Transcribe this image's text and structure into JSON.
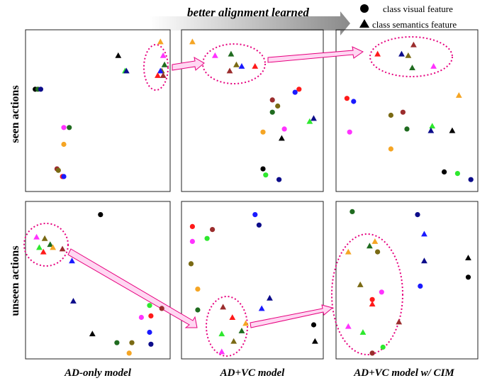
{
  "header": {
    "arrow_label": "better alignment learned",
    "legend": {
      "visual": "class visual feature",
      "semantics": "class semantics feature"
    }
  },
  "row_labels": [
    "seen actions",
    "unseen actions"
  ],
  "column_labels": [
    "AD-only model",
    "AD+VC model",
    "AD+VC model w/ CIM"
  ],
  "colors": {
    "black": "#000000",
    "navy": "#0c0c8a",
    "blue": "#1a1aff",
    "green": "#2ee82e",
    "darkgreen": "#1f6b1f",
    "red": "#ff1a1a",
    "brown": "#9b2d2d",
    "olive": "#7a6a14",
    "orange": "#f5a524",
    "magenta": "#ff33ff",
    "highlight": "#e6007e",
    "arrow_fill": "#ffd7f2"
  },
  "chart_data": [
    {
      "type": "scatter",
      "title": "AD-only model",
      "row": "seen actions",
      "xlim": [
        0,
        100
      ],
      "ylim": [
        0,
        100
      ],
      "points": [
        {
          "x": 4,
          "y": 64,
          "shape": "circle",
          "color": "black"
        },
        {
          "x": 6,
          "y": 64,
          "shape": "circle",
          "color": "darkgreen"
        },
        {
          "x": 8,
          "y": 64,
          "shape": "circle",
          "color": "navy"
        },
        {
          "x": 25,
          "y": 39,
          "shape": "circle",
          "color": "magenta"
        },
        {
          "x": 29,
          "y": 39,
          "shape": "circle",
          "color": "darkgreen"
        },
        {
          "x": 25,
          "y": 28,
          "shape": "circle",
          "color": "orange"
        },
        {
          "x": 20,
          "y": 12,
          "shape": "circle",
          "color": "brown"
        },
        {
          "x": 21,
          "y": 11,
          "shape": "circle",
          "color": "olive"
        },
        {
          "x": 24,
          "y": 7,
          "shape": "circle",
          "color": "red"
        },
        {
          "x": 25,
          "y": 7,
          "shape": "circle",
          "color": "blue"
        },
        {
          "x": 65,
          "y": 86,
          "shape": "triangle",
          "color": "black"
        },
        {
          "x": 70,
          "y": 76,
          "shape": "triangle",
          "color": "green"
        },
        {
          "x": 71,
          "y": 76,
          "shape": "triangle",
          "color": "navy"
        },
        {
          "x": 96,
          "y": 95,
          "shape": "triangle",
          "color": "orange"
        },
        {
          "x": 98,
          "y": 86,
          "shape": "triangle",
          "color": "magenta"
        },
        {
          "x": 99,
          "y": 80,
          "shape": "triangle",
          "color": "darkgreen"
        },
        {
          "x": 97,
          "y": 76,
          "shape": "triangle",
          "color": "olive"
        },
        {
          "x": 96,
          "y": 76,
          "shape": "triangle",
          "color": "blue"
        },
        {
          "x": 94,
          "y": 73,
          "shape": "triangle",
          "color": "red"
        },
        {
          "x": 98,
          "y": 73,
          "shape": "triangle",
          "color": "brown"
        }
      ]
    },
    {
      "type": "scatter",
      "title": "AD+VC model",
      "row": "seen actions",
      "xlim": [
        0,
        100
      ],
      "ylim": [
        0,
        100
      ],
      "points": [
        {
          "x": 5,
          "y": 95,
          "shape": "triangle",
          "color": "orange"
        },
        {
          "x": 22,
          "y": 86,
          "shape": "triangle",
          "color": "magenta"
        },
        {
          "x": 34,
          "y": 87,
          "shape": "triangle",
          "color": "darkgreen"
        },
        {
          "x": 38,
          "y": 80,
          "shape": "triangle",
          "color": "olive"
        },
        {
          "x": 42,
          "y": 79,
          "shape": "triangle",
          "color": "blue"
        },
        {
          "x": 33,
          "y": 76,
          "shape": "triangle",
          "color": "brown"
        },
        {
          "x": 52,
          "y": 79,
          "shape": "triangle",
          "color": "red"
        },
        {
          "x": 85,
          "y": 64,
          "shape": "circle",
          "color": "red"
        },
        {
          "x": 82,
          "y": 62,
          "shape": "circle",
          "color": "blue"
        },
        {
          "x": 65,
          "y": 57,
          "shape": "circle",
          "color": "brown"
        },
        {
          "x": 69,
          "y": 53,
          "shape": "circle",
          "color": "olive"
        },
        {
          "x": 65,
          "y": 49,
          "shape": "circle",
          "color": "darkgreen"
        },
        {
          "x": 96,
          "y": 45,
          "shape": "triangle",
          "color": "navy"
        },
        {
          "x": 93,
          "y": 43,
          "shape": "triangle",
          "color": "green"
        },
        {
          "x": 74,
          "y": 38,
          "shape": "circle",
          "color": "magenta"
        },
        {
          "x": 58,
          "y": 36,
          "shape": "circle",
          "color": "orange"
        },
        {
          "x": 72,
          "y": 32,
          "shape": "triangle",
          "color": "black"
        },
        {
          "x": 58,
          "y": 12,
          "shape": "circle",
          "color": "black"
        },
        {
          "x": 60,
          "y": 8,
          "shape": "circle",
          "color": "green"
        },
        {
          "x": 70,
          "y": 5,
          "shape": "circle",
          "color": "navy"
        }
      ]
    },
    {
      "type": "scatter",
      "title": "AD+VC model w/ CIM",
      "row": "seen actions",
      "xlim": [
        0,
        100
      ],
      "ylim": [
        0,
        100
      ],
      "points": [
        {
          "x": 28,
          "y": 87,
          "shape": "triangle",
          "color": "red"
        },
        {
          "x": 46,
          "y": 87,
          "shape": "triangle",
          "color": "navy"
        },
        {
          "x": 51,
          "y": 86,
          "shape": "triangle",
          "color": "olive"
        },
        {
          "x": 55,
          "y": 93,
          "shape": "triangle",
          "color": "brown"
        },
        {
          "x": 54,
          "y": 78,
          "shape": "triangle",
          "color": "darkgreen"
        },
        {
          "x": 70,
          "y": 79,
          "shape": "triangle",
          "color": "magenta"
        },
        {
          "x": 5,
          "y": 58,
          "shape": "circle",
          "color": "red"
        },
        {
          "x": 10,
          "y": 56,
          "shape": "circle",
          "color": "blue"
        },
        {
          "x": 89,
          "y": 60,
          "shape": "triangle",
          "color": "orange"
        },
        {
          "x": 38,
          "y": 47,
          "shape": "circle",
          "color": "olive"
        },
        {
          "x": 47,
          "y": 49,
          "shape": "circle",
          "color": "brown"
        },
        {
          "x": 7,
          "y": 36,
          "shape": "circle",
          "color": "magenta"
        },
        {
          "x": 38,
          "y": 25,
          "shape": "circle",
          "color": "orange"
        },
        {
          "x": 50,
          "y": 38,
          "shape": "circle",
          "color": "darkgreen"
        },
        {
          "x": 69,
          "y": 40,
          "shape": "triangle",
          "color": "green"
        },
        {
          "x": 68,
          "y": 37,
          "shape": "triangle",
          "color": "navy"
        },
        {
          "x": 84,
          "y": 37,
          "shape": "triangle",
          "color": "black"
        },
        {
          "x": 78,
          "y": 10,
          "shape": "circle",
          "color": "black"
        },
        {
          "x": 88,
          "y": 9,
          "shape": "circle",
          "color": "green"
        },
        {
          "x": 98,
          "y": 5,
          "shape": "circle",
          "color": "navy"
        }
      ]
    },
    {
      "type": "scatter",
      "title": "AD-only model",
      "row": "unseen actions",
      "xlim": [
        0,
        100
      ],
      "ylim": [
        0,
        100
      ],
      "points": [
        {
          "x": 52,
          "y": 94,
          "shape": "circle",
          "color": "black"
        },
        {
          "x": 5,
          "y": 79,
          "shape": "triangle",
          "color": "magenta"
        },
        {
          "x": 11,
          "y": 78,
          "shape": "triangle",
          "color": "olive"
        },
        {
          "x": 15,
          "y": 74,
          "shape": "triangle",
          "color": "darkgreen"
        },
        {
          "x": 7,
          "y": 72,
          "shape": "triangle",
          "color": "green"
        },
        {
          "x": 17,
          "y": 72,
          "shape": "triangle",
          "color": "orange"
        },
        {
          "x": 24,
          "y": 71,
          "shape": "triangle",
          "color": "brown"
        },
        {
          "x": 10,
          "y": 69,
          "shape": "triangle",
          "color": "red"
        },
        {
          "x": 31,
          "y": 63,
          "shape": "triangle",
          "color": "blue"
        },
        {
          "x": 32,
          "y": 36,
          "shape": "triangle",
          "color": "navy"
        },
        {
          "x": 88,
          "y": 33,
          "shape": "circle",
          "color": "green"
        },
        {
          "x": 97,
          "y": 31,
          "shape": "circle",
          "color": "brown"
        },
        {
          "x": 89,
          "y": 26,
          "shape": "circle",
          "color": "red"
        },
        {
          "x": 82,
          "y": 25,
          "shape": "circle",
          "color": "magenta"
        },
        {
          "x": 88,
          "y": 15,
          "shape": "circle",
          "color": "blue"
        },
        {
          "x": 46,
          "y": 14,
          "shape": "triangle",
          "color": "black"
        },
        {
          "x": 64,
          "y": 8,
          "shape": "circle",
          "color": "darkgreen"
        },
        {
          "x": 75,
          "y": 8,
          "shape": "circle",
          "color": "olive"
        },
        {
          "x": 89,
          "y": 7,
          "shape": "circle",
          "color": "navy"
        },
        {
          "x": 73,
          "y": 1,
          "shape": "circle",
          "color": "orange"
        }
      ]
    },
    {
      "type": "scatter",
      "title": "AD+VC model",
      "row": "unseen actions",
      "xlim": [
        0,
        100
      ],
      "ylim": [
        0,
        100
      ],
      "points": [
        {
          "x": 52,
          "y": 94,
          "shape": "circle",
          "color": "blue"
        },
        {
          "x": 5,
          "y": 86,
          "shape": "circle",
          "color": "red"
        },
        {
          "x": 20,
          "y": 84,
          "shape": "circle",
          "color": "brown"
        },
        {
          "x": 55,
          "y": 87,
          "shape": "circle",
          "color": "navy"
        },
        {
          "x": 5,
          "y": 76,
          "shape": "circle",
          "color": "magenta"
        },
        {
          "x": 16,
          "y": 78,
          "shape": "circle",
          "color": "green"
        },
        {
          "x": 4,
          "y": 61,
          "shape": "circle",
          "color": "olive"
        },
        {
          "x": 9,
          "y": 44,
          "shape": "circle",
          "color": "orange"
        },
        {
          "x": 9,
          "y": 30,
          "shape": "circle",
          "color": "darkgreen"
        },
        {
          "x": 63,
          "y": 38,
          "shape": "triangle",
          "color": "navy"
        },
        {
          "x": 57,
          "y": 31,
          "shape": "triangle",
          "color": "blue"
        },
        {
          "x": 28,
          "y": 32,
          "shape": "triangle",
          "color": "brown"
        },
        {
          "x": 35,
          "y": 25,
          "shape": "triangle",
          "color": "red"
        },
        {
          "x": 45,
          "y": 21,
          "shape": "triangle",
          "color": "orange"
        },
        {
          "x": 42,
          "y": 16,
          "shape": "triangle",
          "color": "darkgreen"
        },
        {
          "x": 27,
          "y": 14,
          "shape": "triangle",
          "color": "green"
        },
        {
          "x": 36,
          "y": 9,
          "shape": "triangle",
          "color": "olive"
        },
        {
          "x": 27,
          "y": 2,
          "shape": "triangle",
          "color": "magenta"
        },
        {
          "x": 96,
          "y": 20,
          "shape": "circle",
          "color": "black"
        },
        {
          "x": 97,
          "y": 9,
          "shape": "triangle",
          "color": "black"
        }
      ]
    },
    {
      "type": "scatter",
      "title": "AD+VC model w/ CIM",
      "row": "unseen actions",
      "xlim": [
        0,
        100
      ],
      "ylim": [
        0,
        100
      ],
      "points": [
        {
          "x": 9,
          "y": 96,
          "shape": "circle",
          "color": "darkgreen"
        },
        {
          "x": 58,
          "y": 94,
          "shape": "circle",
          "color": "navy"
        },
        {
          "x": 63,
          "y": 81,
          "shape": "triangle",
          "color": "blue"
        },
        {
          "x": 26,
          "y": 76,
          "shape": "triangle",
          "color": "orange"
        },
        {
          "x": 22,
          "y": 73,
          "shape": "triangle",
          "color": "darkgreen"
        },
        {
          "x": 6,
          "y": 69,
          "shape": "triangle",
          "color": "orange"
        },
        {
          "x": 28,
          "y": 69,
          "shape": "circle",
          "color": "olive"
        },
        {
          "x": 96,
          "y": 65,
          "shape": "triangle",
          "color": "black"
        },
        {
          "x": 63,
          "y": 63,
          "shape": "triangle",
          "color": "navy"
        },
        {
          "x": 96,
          "y": 52,
          "shape": "circle",
          "color": "black"
        },
        {
          "x": 60,
          "y": 46,
          "shape": "circle",
          "color": "blue"
        },
        {
          "x": 15,
          "y": 47,
          "shape": "triangle",
          "color": "olive"
        },
        {
          "x": 31,
          "y": 42,
          "shape": "circle",
          "color": "magenta"
        },
        {
          "x": 24,
          "y": 37,
          "shape": "circle",
          "color": "red"
        },
        {
          "x": 24,
          "y": 34,
          "shape": "triangle",
          "color": "red"
        },
        {
          "x": 44,
          "y": 22,
          "shape": "triangle",
          "color": "brown"
        },
        {
          "x": 6,
          "y": 19,
          "shape": "triangle",
          "color": "magenta"
        },
        {
          "x": 17,
          "y": 15,
          "shape": "triangle",
          "color": "green"
        },
        {
          "x": 32,
          "y": 5,
          "shape": "circle",
          "color": "green"
        },
        {
          "x": 24,
          "y": 1,
          "shape": "circle",
          "color": "brown"
        }
      ]
    }
  ]
}
